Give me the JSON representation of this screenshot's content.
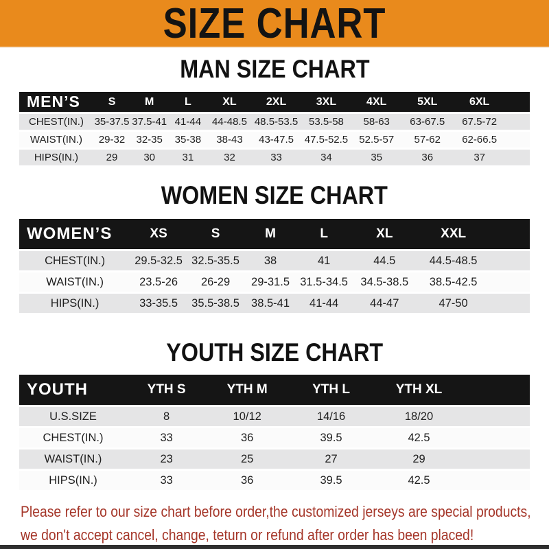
{
  "banner": {
    "title": "SIZE CHART"
  },
  "sections": [
    {
      "heading": "MAN SIZE CHART",
      "table": {
        "corner": "MEN’S",
        "columns": [
          "S",
          "M",
          "L",
          "XL",
          "2XL",
          "3XL",
          "4XL",
          "5XL",
          "6XL"
        ],
        "rows": [
          {
            "label": "CHEST(IN.)",
            "values": [
              "35-37.5",
              "37.5-41",
              "41-44",
              "44-48.5",
              "48.5-53.5",
              "53.5-58",
              "58-63",
              "63-67.5",
              "67.5-72"
            ]
          },
          {
            "label": "WAIST(IN.)",
            "values": [
              "29-32",
              "32-35",
              "35-38",
              "38-43",
              "43-47.5",
              "47.5-52.5",
              "52.5-57",
              "57-62",
              "62-66.5"
            ]
          },
          {
            "label": "HIPS(IN.)",
            "values": [
              "29",
              "30",
              "31",
              "32",
              "33",
              "34",
              "35",
              "36",
              "37"
            ]
          }
        ]
      }
    },
    {
      "heading": "WOMEN SIZE CHART",
      "table": {
        "corner": "WOMEN’S",
        "columns": [
          "XS",
          "S",
          "M",
          "L",
          "XL",
          "XXL"
        ],
        "rows": [
          {
            "label": "CHEST(IN.)",
            "values": [
              "29.5-32.5",
              "32.5-35.5",
              "38",
              "41",
              "44.5",
              "44.5-48.5"
            ]
          },
          {
            "label": "WAIST(IN.)",
            "values": [
              "23.5-26",
              "26-29",
              "29-31.5",
              "31.5-34.5",
              "34.5-38.5",
              "38.5-42.5"
            ]
          },
          {
            "label": "HIPS(IN.)",
            "values": [
              "33-35.5",
              "35.5-38.5",
              "38.5-41",
              "41-44",
              "44-47",
              "47-50"
            ]
          }
        ]
      }
    },
    {
      "heading": "YOUTH SIZE CHART",
      "table": {
        "corner": "YOUTH",
        "columns": [
          "YTH S",
          "YTH M",
          "YTH L",
          "YTH XL"
        ],
        "rows": [
          {
            "label": "U.S.SIZE",
            "values": [
              "8",
              "10/12",
              "14/16",
              "18/20"
            ]
          },
          {
            "label": "CHEST(IN.)",
            "values": [
              "33",
              "36",
              "39.5",
              "42.5"
            ]
          },
          {
            "label": "WAIST(IN.)",
            "values": [
              "23",
              "25",
              "27",
              "29"
            ]
          },
          {
            "label": "HIPS(IN.)",
            "values": [
              "33",
              "36",
              "39.5",
              "42.5"
            ]
          }
        ]
      }
    }
  ],
  "footer": {
    "line1": "Please refer to our size chart before order,the customized jerseys are special products,",
    "line2": "we don't accept cancel, change, teturn or refund after order has been placed!"
  },
  "colors": {
    "banner_bg": "#E98A1C",
    "bar_bg": "#151515",
    "stripe_bg": "#E5E5E6",
    "white_row_bg": "#FBFBFB",
    "note_color": "#A53629",
    "strip_bg": "#2F2F2F",
    "cell_color": "#1E1E1E"
  }
}
